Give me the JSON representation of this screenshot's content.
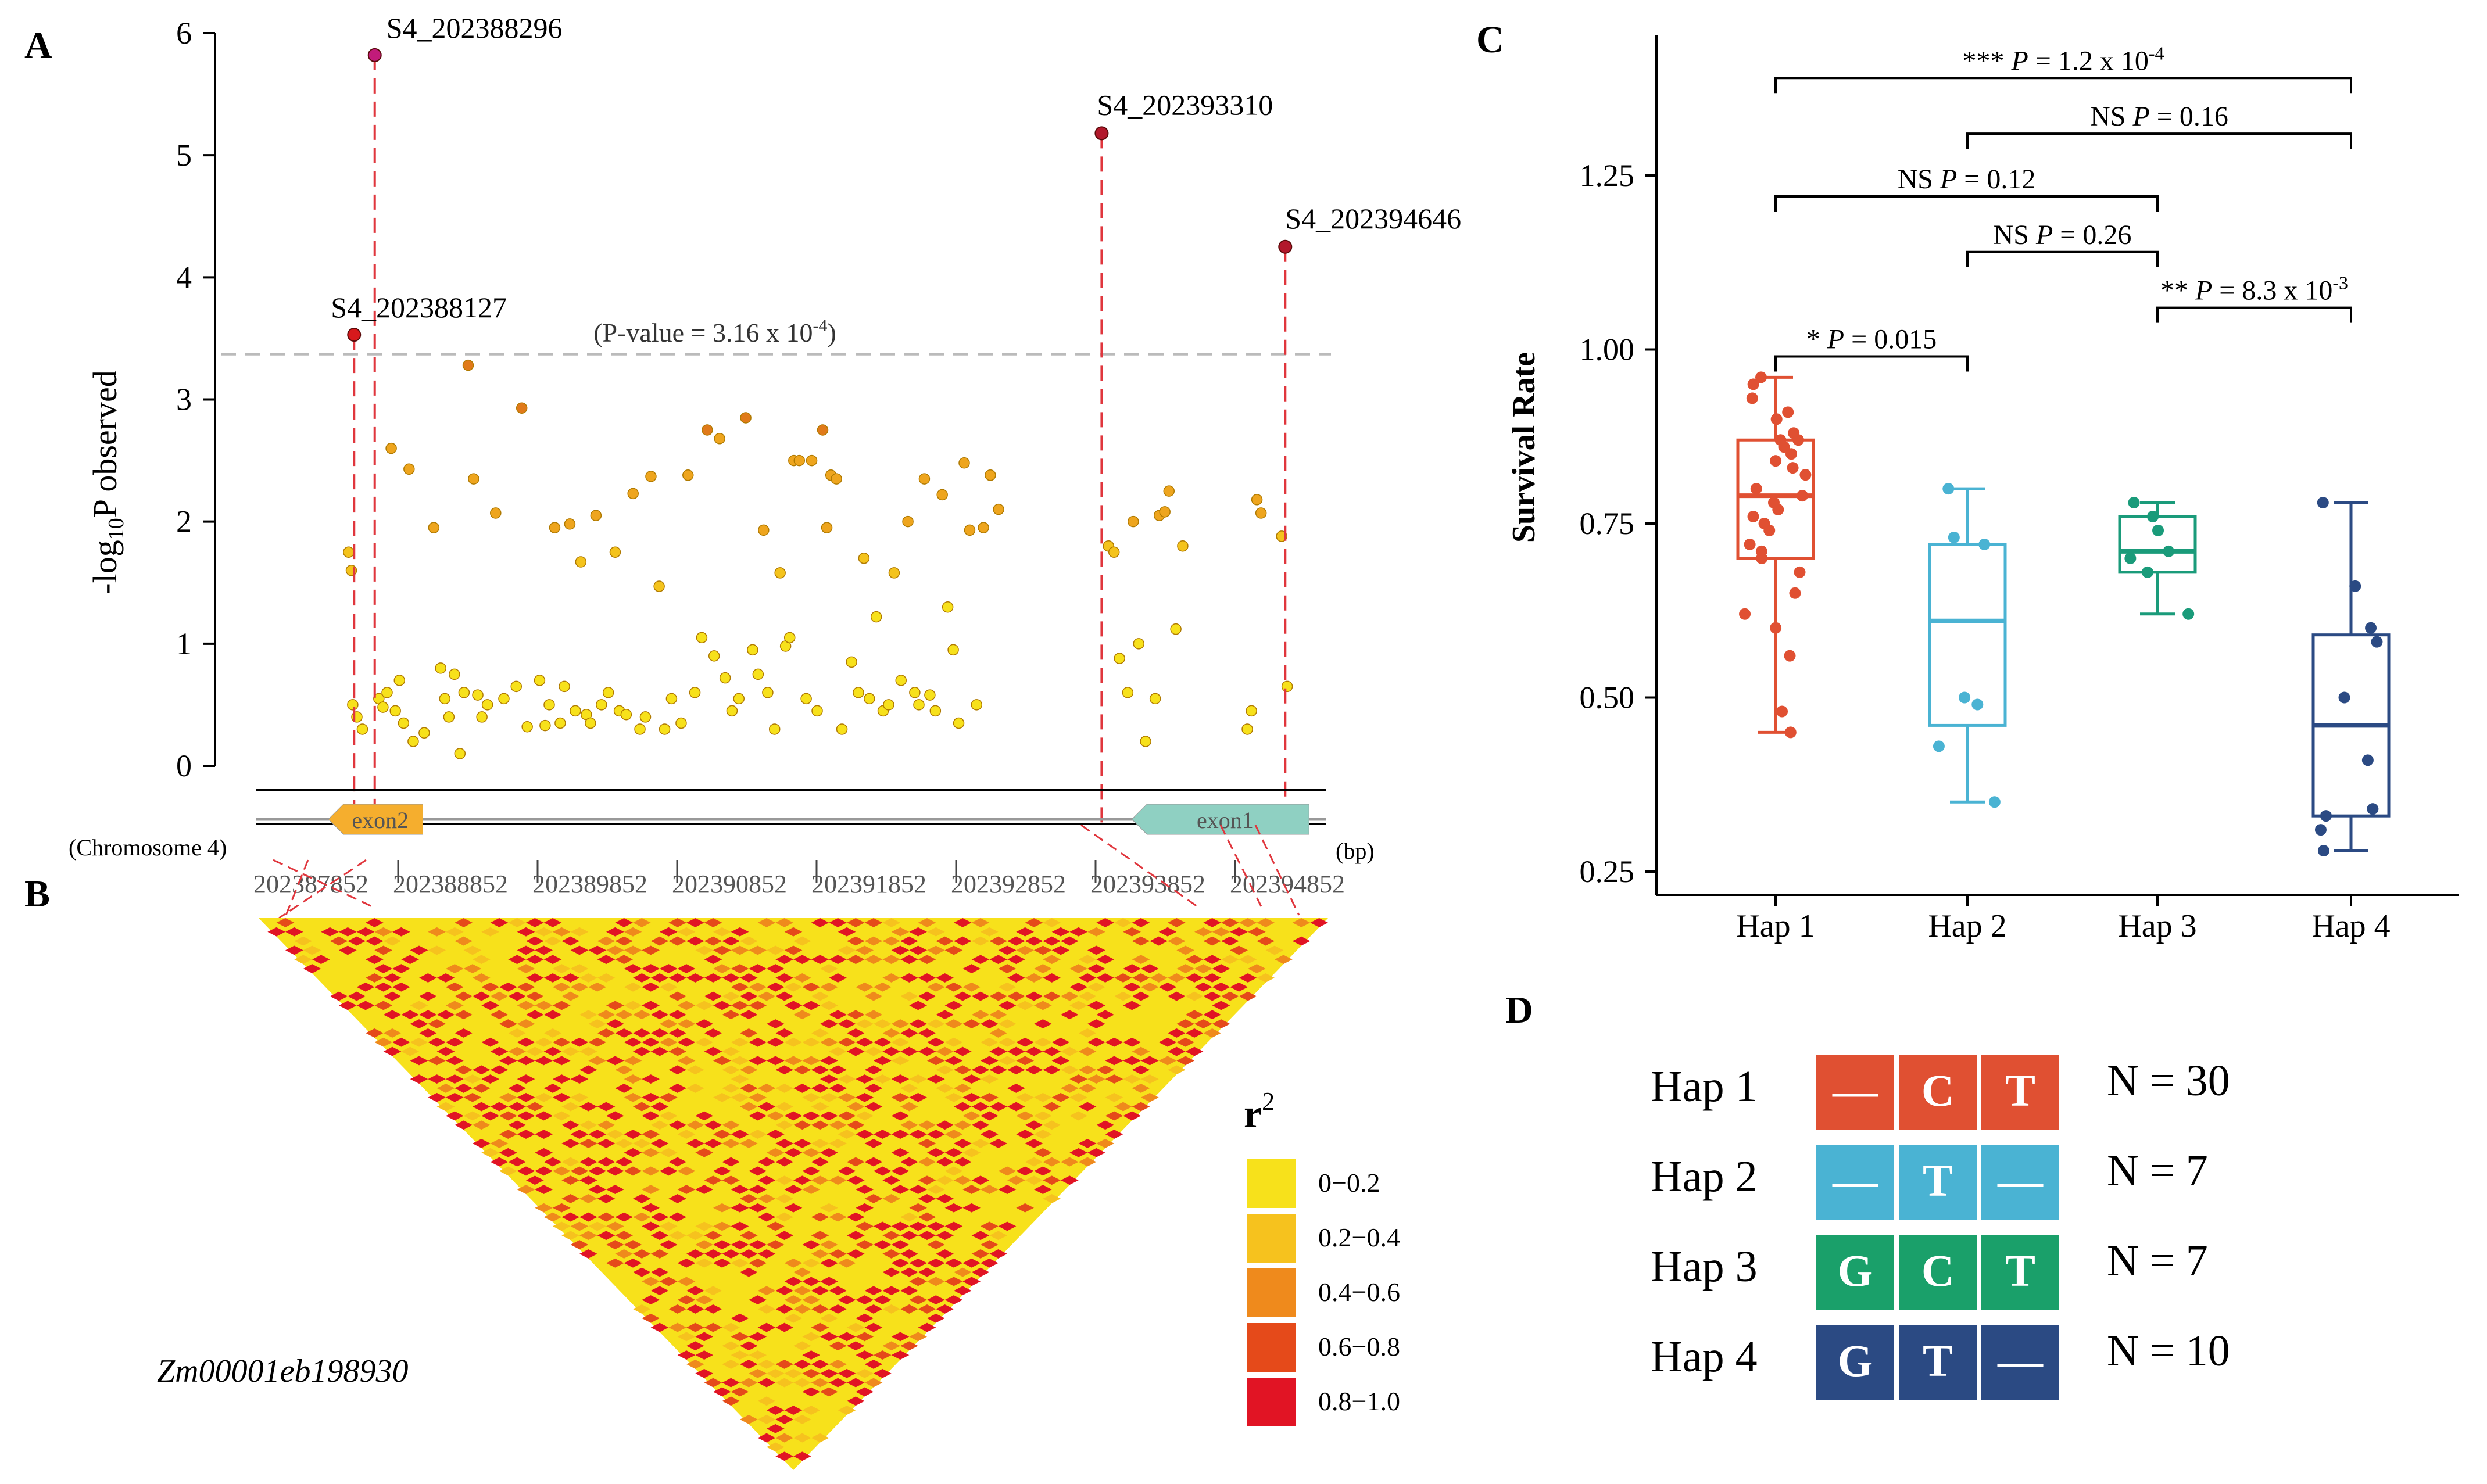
{
  "panel_labels": {
    "a": "A",
    "b": "B",
    "c": "C",
    "d": "D"
  },
  "chart_data": [
    {
      "type": "scatter",
      "panel": "A",
      "ylabel_prefix": "-log",
      "ylabel_sub": "10",
      "ylabel_suffix": "P observed",
      "ylim": [
        0,
        6
      ],
      "yticks": [
        "0",
        "1",
        "2",
        "3",
        "4",
        "5",
        "6"
      ],
      "threshold": {
        "value": 3.37,
        "label_prefix": "(P-value = 3.16 x 10",
        "label_exp": "-4",
        "label_suffix": ")"
      },
      "xlim": [
        202387852,
        202394852
      ],
      "xticks": [
        "202387852",
        "202388852",
        "202389852",
        "202390852",
        "202391852",
        "202392852",
        "202393852",
        "202394852"
      ],
      "chromosome_label": "(Chromosome 4)",
      "unit_label": "(bp)",
      "exons": [
        {
          "label": "exon2",
          "start": 202387852,
          "end": 202388370,
          "direction": "left",
          "color": "#f5ae2e"
        },
        {
          "label": "exon1",
          "start": 202393530,
          "end": 202394650,
          "direction": "left",
          "color": "#8fd0c2"
        }
      ],
      "highlights": [
        {
          "label": "S4_202388296",
          "pos": 202388020,
          "y": 5.82,
          "color": "#c21b7a"
        },
        {
          "label": "S4_202388127",
          "pos": 202387870,
          "y": 3.53,
          "color": "#d7191c"
        },
        {
          "label": "S4_202393310",
          "pos": 202393310,
          "y": 5.18,
          "color": "#b2182b"
        },
        {
          "label": "S4_202394646",
          "pos": 202394646,
          "y": 4.25,
          "color": "#b2182b"
        }
      ],
      "points": [
        [
          202387830,
          1.75
        ],
        [
          202387850,
          1.6
        ],
        [
          202387860,
          0.5
        ],
        [
          202387890,
          0.4
        ],
        [
          202387930,
          0.3
        ],
        [
          202388050,
          0.55
        ],
        [
          202388080,
          0.48
        ],
        [
          202388110,
          0.6
        ],
        [
          202388140,
          2.6
        ],
        [
          202388170,
          0.45
        ],
        [
          202388200,
          0.7
        ],
        [
          202388230,
          0.35
        ],
        [
          202388270,
          2.43
        ],
        [
          202388300,
          0.2
        ],
        [
          202388380,
          0.27
        ],
        [
          202388450,
          1.95
        ],
        [
          202388500,
          0.8
        ],
        [
          202388530,
          0.55
        ],
        [
          202388560,
          0.4
        ],
        [
          202388600,
          0.75
        ],
        [
          202388640,
          0.1
        ],
        [
          202388670,
          0.6
        ],
        [
          202388700,
          3.28
        ],
        [
          202388740,
          2.35
        ],
        [
          202388770,
          0.58
        ],
        [
          202388800,
          0.4
        ],
        [
          202388840,
          0.5
        ],
        [
          202388900,
          2.07
        ],
        [
          202388960,
          0.55
        ],
        [
          202389050,
          0.65
        ],
        [
          202389090,
          2.93
        ],
        [
          202389130,
          0.32
        ],
        [
          202389220,
          0.7
        ],
        [
          202389260,
          0.33
        ],
        [
          202389290,
          0.5
        ],
        [
          202389330,
          1.95
        ],
        [
          202389370,
          0.35
        ],
        [
          202389400,
          0.65
        ],
        [
          202389440,
          1.98
        ],
        [
          202389480,
          0.45
        ],
        [
          202389520,
          1.67
        ],
        [
          202389560,
          0.42
        ],
        [
          202389590,
          0.35
        ],
        [
          202389630,
          2.05
        ],
        [
          202389670,
          0.5
        ],
        [
          202389720,
          0.6
        ],
        [
          202389770,
          1.75
        ],
        [
          202389800,
          0.45
        ],
        [
          202389850,
          0.42
        ],
        [
          202389900,
          2.23
        ],
        [
          202389950,
          0.3
        ],
        [
          202389990,
          0.4
        ],
        [
          202390030,
          2.37
        ],
        [
          202390090,
          1.47
        ],
        [
          202390130,
          0.3
        ],
        [
          202390180,
          0.55
        ],
        [
          202390250,
          0.35
        ],
        [
          202390300,
          2.38
        ],
        [
          202390350,
          0.6
        ],
        [
          202390400,
          1.05
        ],
        [
          202390440,
          2.75
        ],
        [
          202390490,
          0.9
        ],
        [
          202390530,
          2.68
        ],
        [
          202390570,
          0.72
        ],
        [
          202390620,
          0.45
        ],
        [
          202390670,
          0.55
        ],
        [
          202390720,
          2.85
        ],
        [
          202390770,
          0.95
        ],
        [
          202390810,
          0.75
        ],
        [
          202390850,
          1.93
        ],
        [
          202390880,
          0.6
        ],
        [
          202390930,
          0.3
        ],
        [
          202390970,
          1.58
        ],
        [
          202391010,
          0.98
        ],
        [
          202391040,
          1.05
        ],
        [
          202391070,
          2.5
        ],
        [
          202391110,
          2.5
        ],
        [
          202391160,
          0.55
        ],
        [
          202391200,
          2.5
        ],
        [
          202391240,
          0.45
        ],
        [
          202391280,
          2.75
        ],
        [
          202391310,
          1.95
        ],
        [
          202391340,
          2.38
        ],
        [
          202391380,
          2.35
        ],
        [
          202391420,
          0.3
        ],
        [
          202391490,
          0.85
        ],
        [
          202391540,
          0.6
        ],
        [
          202391580,
          1.7
        ],
        [
          202391620,
          0.55
        ],
        [
          202391670,
          1.22
        ],
        [
          202391720,
          0.45
        ],
        [
          202391760,
          0.5
        ],
        [
          202391800,
          1.58
        ],
        [
          202391850,
          0.7
        ],
        [
          202391900,
          2.0
        ],
        [
          202391950,
          0.6
        ],
        [
          202391980,
          0.5
        ],
        [
          202392020,
          2.35
        ],
        [
          202392060,
          0.58
        ],
        [
          202392100,
          0.45
        ],
        [
          202392150,
          2.22
        ],
        [
          202392190,
          1.3
        ],
        [
          202392230,
          0.95
        ],
        [
          202392270,
          0.35
        ],
        [
          202392310,
          2.48
        ],
        [
          202392350,
          1.93
        ],
        [
          202392400,
          0.5
        ],
        [
          202392450,
          1.95
        ],
        [
          202392500,
          2.38
        ],
        [
          202392560,
          2.1
        ],
        [
          202393360,
          1.8
        ],
        [
          202393400,
          1.75
        ],
        [
          202393440,
          0.88
        ],
        [
          202393500,
          0.6
        ],
        [
          202393540,
          2.0
        ],
        [
          202393580,
          1.0
        ],
        [
          202393630,
          0.2
        ],
        [
          202393700,
          0.55
        ],
        [
          202393730,
          2.05
        ],
        [
          202393770,
          2.08
        ],
        [
          202393800,
          2.25
        ],
        [
          202393850,
          1.12
        ],
        [
          202393900,
          1.8
        ],
        [
          202394370,
          0.3
        ],
        [
          202394400,
          0.45
        ],
        [
          202394440,
          2.18
        ],
        [
          202394470,
          2.07
        ],
        [
          202394620,
          1.88
        ],
        [
          202394660,
          0.65
        ]
      ]
    },
    {
      "type": "heatmap",
      "panel": "B",
      "gene_label": "Zm00001eb198930",
      "legend_title": "r",
      "legend_title_sup": "2",
      "legend": [
        {
          "label": "0−0.2",
          "color": "#f7e11b"
        },
        {
          "label": "0.2−0.4",
          "color": "#f6c21e"
        },
        {
          "label": "0.4−0.6",
          "color": "#ef8a1c"
        },
        {
          "label": "0.6−0.8",
          "color": "#e54a1a"
        },
        {
          "label": "0.8−1.0",
          "color": "#e11424"
        }
      ]
    },
    {
      "type": "box",
      "panel": "C",
      "ylabel": "Survival Rate",
      "ylim": [
        0.25,
        1.45
      ],
      "yticks": [
        "0.25",
        "0.50",
        "0.75",
        "1.00",
        "1.25"
      ],
      "categories": [
        "Hap 1",
        "Hap 2",
        "Hap 3",
        "Hap 4"
      ],
      "series": [
        {
          "name": "Hap 1",
          "color": "#e05032",
          "q1": 0.7,
          "median": 0.79,
          "q3": 0.87,
          "min": 0.45,
          "max": 0.96,
          "points": [
            0.96,
            0.95,
            0.93,
            0.91,
            0.9,
            0.88,
            0.87,
            0.87,
            0.86,
            0.85,
            0.84,
            0.83,
            0.82,
            0.8,
            0.79,
            0.78,
            0.77,
            0.76,
            0.75,
            0.74,
            0.72,
            0.71,
            0.7,
            0.68,
            0.65,
            0.62,
            0.6,
            0.56,
            0.48,
            0.45
          ]
        },
        {
          "name": "Hap 2",
          "color": "#4ab3d3",
          "q1": 0.46,
          "median": 0.61,
          "q3": 0.72,
          "min": 0.35,
          "max": 0.8,
          "points": [
            0.8,
            0.73,
            0.72,
            0.5,
            0.49,
            0.43,
            0.35
          ]
        },
        {
          "name": "Hap 3",
          "color": "#1a9b7a",
          "q1": 0.68,
          "median": 0.71,
          "q3": 0.76,
          "min": 0.62,
          "max": 0.78,
          "points": [
            0.78,
            0.76,
            0.74,
            0.71,
            0.7,
            0.68,
            0.62
          ]
        },
        {
          "name": "Hap 4",
          "color": "#2b4a83",
          "q1": 0.33,
          "median": 0.46,
          "q3": 0.59,
          "min": 0.28,
          "max": 0.78,
          "points": [
            0.78,
            0.66,
            0.6,
            0.58,
            0.5,
            0.41,
            0.34,
            0.33,
            0.31,
            0.28
          ]
        }
      ],
      "comparisons": [
        {
          "a": 0,
          "b": 3,
          "y": 1.39,
          "stars": "***",
          "p_prefix": "P = 1.2 x 10",
          "p_exp": "-4"
        },
        {
          "a": 1,
          "b": 3,
          "y": 1.31,
          "stars": "NS",
          "p_prefix": "P = 0.16",
          "p_exp": ""
        },
        {
          "a": 0,
          "b": 2,
          "y": 1.22,
          "stars": "NS",
          "p_prefix": "P = 0.12",
          "p_exp": ""
        },
        {
          "a": 1,
          "b": 2,
          "y": 1.14,
          "stars": "NS",
          "p_prefix": "P = 0.26",
          "p_exp": ""
        },
        {
          "a": 2,
          "b": 3,
          "y": 1.06,
          "stars": "**",
          "p_prefix": "P = 8.3 x 10",
          "p_exp": "-3"
        },
        {
          "a": 0,
          "b": 1,
          "y": 0.99,
          "stars": "*",
          "p_prefix": "P = 0.015",
          "p_exp": ""
        }
      ]
    },
    {
      "type": "table",
      "panel": "D",
      "rows": [
        {
          "name": "Hap 1",
          "alleles": [
            "—",
            "C",
            "T"
          ],
          "count": "N = 30",
          "color": "#e05032"
        },
        {
          "name": "Hap 2",
          "alleles": [
            "—",
            "T",
            "—"
          ],
          "count": "N = 7",
          "color": "#4ab3d3"
        },
        {
          "name": "Hap 3",
          "alleles": [
            "G",
            "C",
            "T"
          ],
          "count": "N = 7",
          "color": "#1aa06a"
        },
        {
          "name": "Hap 4",
          "alleles": [
            "G",
            "T",
            "—"
          ],
          "count": "N = 10",
          "color": "#2b4a83"
        }
      ]
    }
  ]
}
